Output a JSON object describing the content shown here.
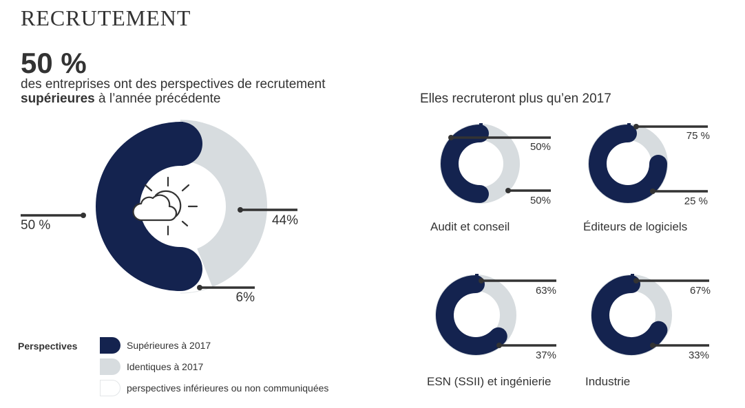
{
  "header": {
    "title": "RECRUTEMENT",
    "headline_value": "50 %",
    "headline_text_before": "des entreprises ont des perspectives de recrutement ",
    "headline_text_bold": "supérieures",
    "headline_text_after": " à l’année précédente"
  },
  "right_title": "Elles recruteront plus qu’en 2017",
  "legend": {
    "title": "Perspectives",
    "items": [
      {
        "label": "Supérieures à 2017",
        "color": "#14234f"
      },
      {
        "label": "Identiques à 2017",
        "color": "#d7dcdf"
      },
      {
        "label": "perspectives inférieures ou non communiquées",
        "color": "#ffffff"
      }
    ]
  },
  "colors": {
    "superieures": "#14234f",
    "identiques": "#d7dcdf",
    "inferieures": "#ffffff",
    "leader": "#333333"
  },
  "icon": "sun-cloud-icon",
  "chart_data": [
    {
      "type": "pie",
      "variant": "donut",
      "categories": [
        "Supérieures à 2017",
        "Identiques à 2017",
        "perspectives inférieures ou non communiquées"
      ],
      "values": [
        50,
        44,
        6
      ],
      "labels": [
        "50 %",
        "44%",
        "6%"
      ]
    },
    {
      "type": "pie",
      "variant": "donut",
      "title": "Audit et conseil",
      "categories": [
        "Supérieures à 2017",
        "Identiques à 2017"
      ],
      "values": [
        50,
        50
      ],
      "labels": [
        "50%",
        "50%"
      ]
    },
    {
      "type": "pie",
      "variant": "donut",
      "title": "Éditeurs de logiciels",
      "categories": [
        "Supérieures à 2017",
        "Identiques à 2017"
      ],
      "values": [
        75,
        25
      ],
      "labels": [
        "75 %",
        "25 %"
      ]
    },
    {
      "type": "pie",
      "variant": "donut",
      "title": "ESN (SSII) et ingénierie",
      "categories": [
        "Supérieures à 2017",
        "Identiques à 2017"
      ],
      "values": [
        63,
        37
      ],
      "labels": [
        "63%",
        "37%"
      ]
    },
    {
      "type": "pie",
      "variant": "donut",
      "title": "Industrie",
      "categories": [
        "Supérieures à 2017",
        "Identiques à 2017"
      ],
      "values": [
        67,
        33
      ],
      "labels": [
        "67%",
        "33%"
      ]
    }
  ]
}
